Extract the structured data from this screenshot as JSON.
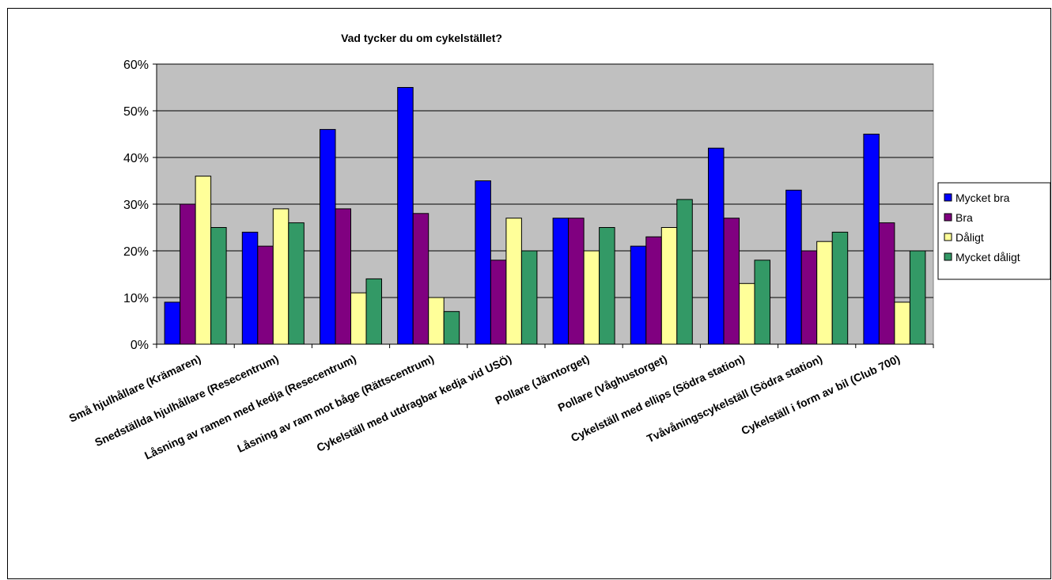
{
  "chart_data": {
    "type": "bar",
    "title": "Vad tycker du om cykelstället?",
    "xlabel": "",
    "ylabel": "",
    "ylim": [
      0,
      0.6
    ],
    "yticks": [
      "0%",
      "10%",
      "20%",
      "30%",
      "40%",
      "50%",
      "60%"
    ],
    "grid": true,
    "legend_position": "right",
    "categories": [
      "Små hjulhållare (Krämaren)",
      "Snedställda hjulhållare (Resecentrum)",
      "Låsning av ramen med kedja (Resecentrum)",
      "Låsning av ram mot båge (Rättscentrum)",
      "Cykelställ med utdragbar kedja vid USÖ)",
      "Pollare (Järntorget)",
      "Pollare (Våghustorget)",
      "Cykelställ med ellips (Södra station)",
      "Tvåvåningscykelställ (Södra station)",
      "Cykelställ i form av bil (Club 700)"
    ],
    "series": [
      {
        "name": "Mycket bra",
        "color": "#0000FF",
        "values": [
          0.09,
          0.24,
          0.46,
          0.55,
          0.35,
          0.27,
          0.21,
          0.42,
          0.33,
          0.45
        ]
      },
      {
        "name": "Bra",
        "color": "#800080",
        "values": [
          0.3,
          0.21,
          0.29,
          0.28,
          0.18,
          0.27,
          0.23,
          0.27,
          0.2,
          0.26
        ]
      },
      {
        "name": "Dåligt",
        "color": "#FFFF99",
        "values": [
          0.36,
          0.29,
          0.11,
          0.1,
          0.27,
          0.2,
          0.25,
          0.13,
          0.22,
          0.09
        ]
      },
      {
        "name": "Mycket dåligt",
        "color": "#339966",
        "values": [
          0.25,
          0.26,
          0.14,
          0.07,
          0.2,
          0.25,
          0.31,
          0.18,
          0.24,
          0.2
        ]
      }
    ],
    "plot_background": "#C0C0C0"
  }
}
